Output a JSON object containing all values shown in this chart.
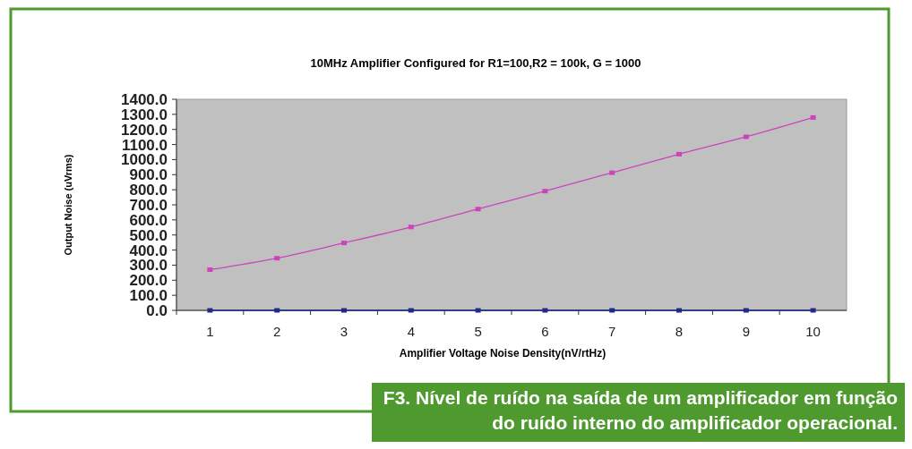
{
  "chart_data": {
    "type": "line",
    "title": "10MHz Amplifier Configured for R1=100,R2 = 100k, G = 1000",
    "xlabel": "Amplifier Voltage Noise Density(nV/rtHz)",
    "ylabel": "Output Noise (uVrms)",
    "categories": [
      "1",
      "2",
      "3",
      "4",
      "5",
      "6",
      "7",
      "8",
      "9",
      "10"
    ],
    "series": [
      {
        "color": "#cc44bb",
        "values": [
          270,
          346,
          447,
          553,
          672,
          791,
          913,
          1036,
          1151,
          1279
        ]
      },
      {
        "color": "#1f2a8a",
        "values": [
          0,
          0,
          0,
          0,
          0,
          0,
          0,
          0,
          0,
          0
        ]
      }
    ],
    "ylim": [
      0,
      1400
    ],
    "yticks": [
      {
        "value": 0,
        "label": "0.0"
      },
      {
        "value": 100,
        "label": "100.0"
      },
      {
        "value": 200,
        "label": "200.0"
      },
      {
        "value": 300,
        "label": "300.0"
      },
      {
        "value": 400,
        "label": "400.0"
      },
      {
        "value": 500,
        "label": "500.0"
      },
      {
        "value": 600,
        "label": "600.0"
      },
      {
        "value": 700,
        "label": "700.0"
      },
      {
        "value": 800,
        "label": "800.0"
      },
      {
        "value": 900,
        "label": "900.0"
      },
      {
        "value": 1000,
        "label": "1000.0"
      },
      {
        "value": 1100,
        "label": "1100.0"
      },
      {
        "value": 1200,
        "label": "1200.0"
      },
      {
        "value": 1300,
        "label": "1300.0"
      },
      {
        "value": 1400,
        "label": "1400.0"
      }
    ],
    "marker": "square",
    "grid": false,
    "annotations": [
      "F3. Nível de ruído na saída de um amplificador em função do ruído interno do amplificador operacional."
    ]
  }
}
